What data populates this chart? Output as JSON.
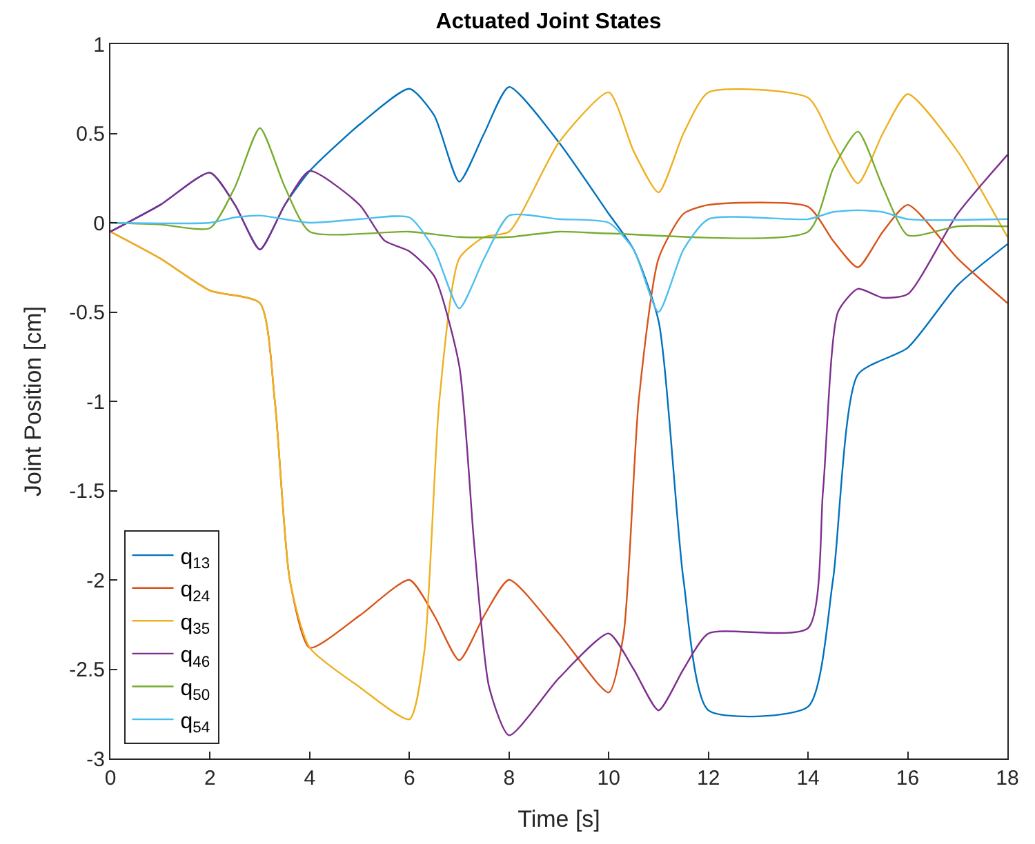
{
  "chart_data": {
    "type": "line",
    "title": "Actuated Joint States",
    "xlabel": "Time [s]",
    "ylabel": "Joint Position [cm]",
    "xlim": [
      0,
      18
    ],
    "xticks": [
      0,
      2,
      4,
      6,
      8,
      10,
      12,
      14,
      16,
      18
    ],
    "ylim": [
      -3,
      1
    ],
    "yticks": [
      -3,
      -2.5,
      -2,
      -1.5,
      -1,
      -0.5,
      0,
      0.5,
      1
    ],
    "grid": false,
    "legend": "bottom left",
    "line_style": "solid",
    "marker": "none",
    "series": [
      {
        "name": "q$_{13}$",
        "color": "#0072bd",
        "x": [
          0,
          1,
          2,
          2.5,
          3,
          3.5,
          4,
          5,
          6,
          6.5,
          7,
          7.5,
          8,
          9,
          10,
          10.5,
          11,
          11.5,
          12,
          14,
          14.5,
          15,
          16,
          17,
          18
        ],
        "values": [
          -0.05,
          0.1,
          0.28,
          0.1,
          -0.15,
          0.1,
          0.29,
          0.55,
          0.75,
          0.6,
          0.23,
          0.5,
          0.76,
          0.45,
          0.05,
          -0.15,
          -0.55,
          -2.0,
          -2.73,
          -2.71,
          -2.0,
          -0.85,
          -0.7,
          -0.35,
          -0.12
        ]
      },
      {
        "name": "q$_{24}$",
        "color": "#d95319",
        "x": [
          0,
          1,
          2,
          3,
          3.3,
          3.6,
          4,
          5,
          6,
          6.5,
          7,
          7.5,
          8,
          9,
          10,
          10.3,
          10.6,
          11,
          11.5,
          12,
          14,
          14.5,
          15,
          15.5,
          16,
          17,
          18
        ],
        "values": [
          -0.05,
          -0.2,
          -0.38,
          -0.45,
          -1.0,
          -2.0,
          -2.38,
          -2.2,
          -2.0,
          -2.2,
          -2.45,
          -2.2,
          -2.0,
          -2.3,
          -2.63,
          -2.3,
          -1.0,
          -0.2,
          0.05,
          0.1,
          0.09,
          -0.1,
          -0.25,
          -0.05,
          0.1,
          -0.2,
          -0.45
        ]
      },
      {
        "name": "q$_{35}$",
        "color": "#edb120",
        "x": [
          0,
          1,
          2,
          3,
          3.3,
          3.6,
          4,
          5,
          6,
          6.3,
          6.6,
          7,
          7.5,
          8,
          9,
          10,
          10.5,
          11,
          11.5,
          12,
          14,
          14.5,
          15,
          15.5,
          16,
          17,
          18
        ],
        "values": [
          -0.05,
          -0.2,
          -0.38,
          -0.45,
          -1.0,
          -2.0,
          -2.38,
          -2.6,
          -2.78,
          -2.4,
          -1.0,
          -0.2,
          -0.08,
          -0.05,
          0.45,
          0.73,
          0.4,
          0.17,
          0.5,
          0.73,
          0.7,
          0.45,
          0.22,
          0.5,
          0.72,
          0.4,
          -0.08
        ]
      },
      {
        "name": "q$_{46}$",
        "color": "#7e2f8e",
        "x": [
          0,
          1,
          2,
          2.5,
          3,
          3.5,
          4,
          5,
          5.5,
          6,
          6.5,
          7,
          7.3,
          7.6,
          8,
          9,
          10,
          10.5,
          11,
          11.5,
          12,
          14,
          14.3,
          14.6,
          15,
          15.5,
          16,
          17,
          18
        ],
        "values": [
          -0.05,
          0.1,
          0.28,
          0.1,
          -0.15,
          0.1,
          0.29,
          0.1,
          -0.1,
          -0.16,
          -0.3,
          -0.8,
          -1.8,
          -2.6,
          -2.87,
          -2.55,
          -2.3,
          -2.5,
          -2.73,
          -2.5,
          -2.3,
          -2.27,
          -1.5,
          -0.5,
          -0.37,
          -0.42,
          -0.4,
          0.05,
          0.38
        ]
      },
      {
        "name": "q$_{50}$",
        "color": "#77ac30",
        "x": [
          0,
          1,
          2,
          2.5,
          3,
          3.5,
          4,
          6,
          7,
          8,
          9,
          10,
          14,
          14.5,
          15,
          15.5,
          16,
          17,
          18
        ],
        "values": [
          0,
          -0.01,
          -0.03,
          0.2,
          0.53,
          0.2,
          -0.05,
          -0.05,
          -0.08,
          -0.08,
          -0.05,
          -0.06,
          -0.05,
          0.3,
          0.51,
          0.2,
          -0.07,
          -0.02,
          -0.02
        ]
      },
      {
        "name": "q$_{54}$",
        "color": "#4dbeee",
        "x": [
          0,
          2,
          2.5,
          3,
          4,
          5,
          6,
          6.5,
          7,
          7.5,
          8,
          9,
          10,
          10.5,
          11,
          11.5,
          12,
          14,
          14.5,
          15,
          15.5,
          16,
          18
        ],
        "values": [
          0,
          0,
          0.03,
          0.04,
          0,
          0.02,
          0.03,
          -0.15,
          -0.48,
          -0.2,
          0.04,
          0.02,
          0,
          -0.15,
          -0.5,
          -0.15,
          0.02,
          0.02,
          0.06,
          0.07,
          0.06,
          0.02,
          0.02
        ]
      }
    ]
  }
}
